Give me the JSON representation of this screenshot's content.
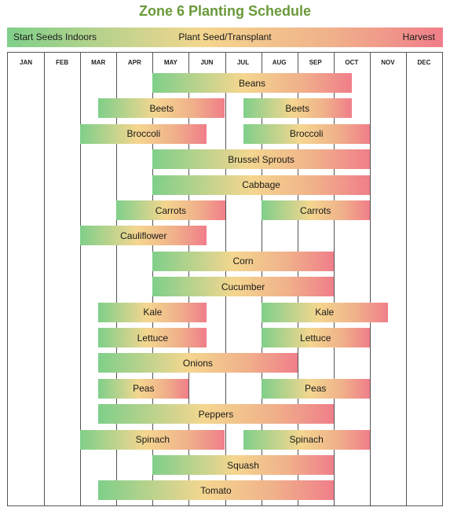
{
  "title": "Zone 6 Planting Schedule",
  "legend": {
    "start": "Start Seeds Indoors",
    "middle": "Plant Seed/Transplant",
    "end": "Harvest"
  },
  "colors": {
    "indoors": "#7fcf8a",
    "transplant": "#f4d68f",
    "harvest": "#f07e8a",
    "title": "#6a9a3a"
  },
  "chart_data": {
    "type": "bar",
    "orientation": "horizontal-gantt",
    "months": [
      "JAN",
      "FEB",
      "MAR",
      "APR",
      "MAY",
      "JUN",
      "JUL",
      "AUG",
      "SEP",
      "OCT",
      "NOV",
      "DEC"
    ],
    "bars": [
      {
        "label": "Beans",
        "start": 4.0,
        "end": 9.5
      },
      {
        "label": "Beets",
        "start": 2.5,
        "end": 6.0
      },
      {
        "label": "Beets",
        "start": 6.5,
        "end": 9.5
      },
      {
        "label": "Broccoli",
        "start": 2.0,
        "end": 5.5
      },
      {
        "label": "Broccoli",
        "start": 6.5,
        "end": 10.0
      },
      {
        "label": "Brussel Sprouts",
        "start": 4.0,
        "end": 10.0
      },
      {
        "label": "Cabbage",
        "start": 4.0,
        "end": 10.0
      },
      {
        "label": "Carrots",
        "start": 3.0,
        "end": 6.0
      },
      {
        "label": "Carrots",
        "start": 7.0,
        "end": 10.0
      },
      {
        "label": "Cauliflower",
        "start": 2.0,
        "end": 5.5
      },
      {
        "label": "Corn",
        "start": 4.0,
        "end": 9.0
      },
      {
        "label": "Cucumber",
        "start": 4.0,
        "end": 9.0
      },
      {
        "label": "Kale",
        "start": 2.5,
        "end": 5.5
      },
      {
        "label": "Kale",
        "start": 7.0,
        "end": 10.5
      },
      {
        "label": "Lettuce",
        "start": 2.5,
        "end": 5.5
      },
      {
        "label": "Lettuce",
        "start": 7.0,
        "end": 10.0
      },
      {
        "label": "Onions",
        "start": 2.5,
        "end": 8.0
      },
      {
        "label": "Peas",
        "start": 2.5,
        "end": 5.0
      },
      {
        "label": "Peas",
        "start": 7.0,
        "end": 10.0
      },
      {
        "label": "Peppers",
        "start": 2.5,
        "end": 9.0
      },
      {
        "label": "Spinach",
        "start": 2.0,
        "end": 6.0
      },
      {
        "label": "Spinach",
        "start": 6.5,
        "end": 10.0
      },
      {
        "label": "Squash",
        "start": 4.0,
        "end": 9.0
      },
      {
        "label": "Tomato",
        "start": 2.5,
        "end": 9.0
      }
    ],
    "row_of_bar": [
      0,
      1,
      1,
      2,
      2,
      3,
      4,
      5,
      5,
      6,
      7,
      8,
      9,
      9,
      10,
      10,
      11,
      12,
      12,
      13,
      14,
      14,
      15,
      16
    ]
  }
}
